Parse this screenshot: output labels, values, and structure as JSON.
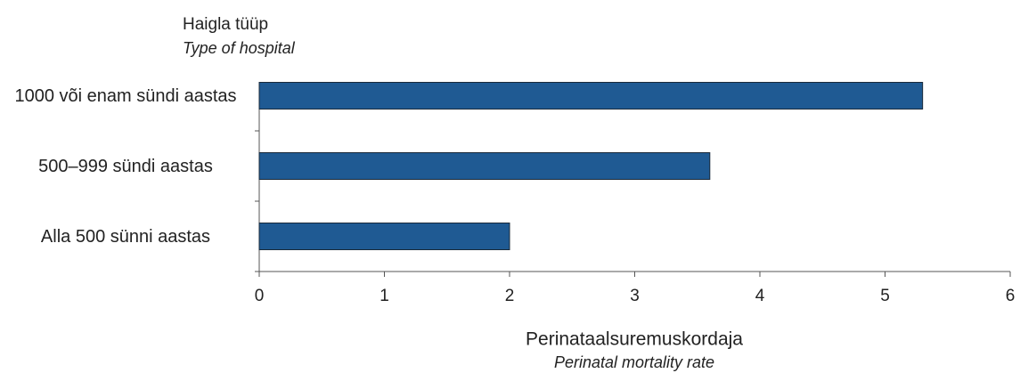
{
  "chart_data": {
    "type": "barh",
    "y_title": "Haigla tüüp",
    "y_subtitle": "Type of hospital",
    "x_title": "Perinataalsuremuskordaja",
    "x_subtitle": "Perinatal mortality rate",
    "categories": [
      "1000 või enam sündi aastas",
      "500–999 sündi aastas",
      "Alla 500 sünni aastas"
    ],
    "values": [
      5.3,
      3.6,
      2.0
    ],
    "color": "#1f5a93",
    "xlim": [
      0,
      6
    ],
    "xticks": [
      0,
      1,
      2,
      3,
      4,
      5,
      6
    ],
    "grid": false
  }
}
